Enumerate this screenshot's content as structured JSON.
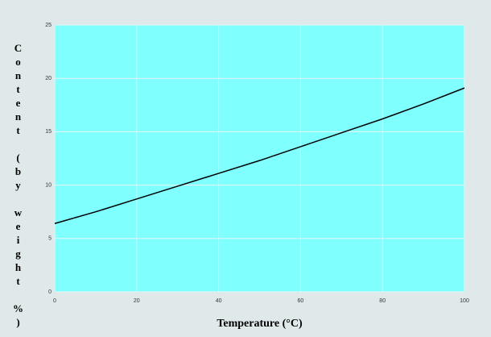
{
  "chart_data": {
    "type": "line",
    "x_label": "Temperature (°C)",
    "y_label": "Content (by weight %)",
    "x": [
      0,
      10,
      20,
      30,
      40,
      50,
      60,
      70,
      80,
      90,
      100
    ],
    "series": [
      {
        "color": "#000000",
        "values": [
          6.4,
          7.5,
          8.7,
          9.9,
          11.1,
          12.3,
          13.6,
          14.9,
          16.2,
          17.6,
          19.1
        ]
      }
    ],
    "xlim": [
      0,
      100
    ],
    "xticks": [
      0,
      20,
      40,
      60,
      80,
      100
    ],
    "ylim": [
      0,
      25
    ],
    "yticks": [
      0,
      5,
      10,
      15,
      20,
      25
    ],
    "grid": true,
    "plot_color": "#80ffff"
  }
}
